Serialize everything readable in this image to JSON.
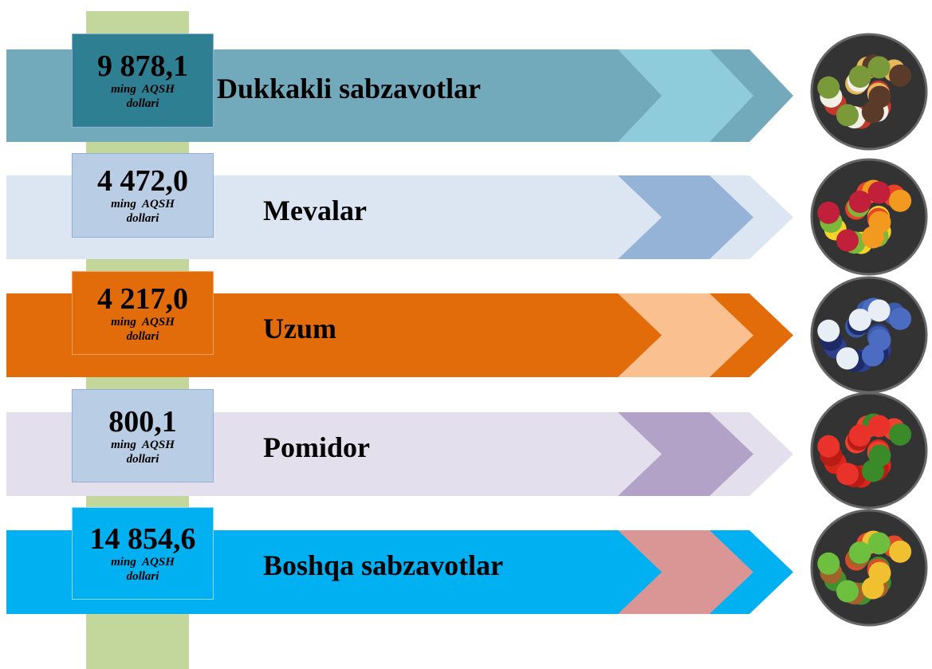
{
  "items": [
    {
      "value": "9 878,1",
      "unit": "ming AQSH dollari",
      "label": "Dukkakli sabzavotlar"
    },
    {
      "value": "4 472,0",
      "unit": "ming AQSH dollari",
      "label": "Mevalar"
    },
    {
      "value": "4 217,0",
      "unit": "ming AQSH dollari",
      "label": "Uzum"
    },
    {
      "value": "800,1",
      "unit": "ming AQSH dollari",
      "label": "Pomidor"
    },
    {
      "value": "14 854,6",
      "unit": "ming AQSH dollari",
      "label": "Boshqa sabzavotlar"
    }
  ]
}
